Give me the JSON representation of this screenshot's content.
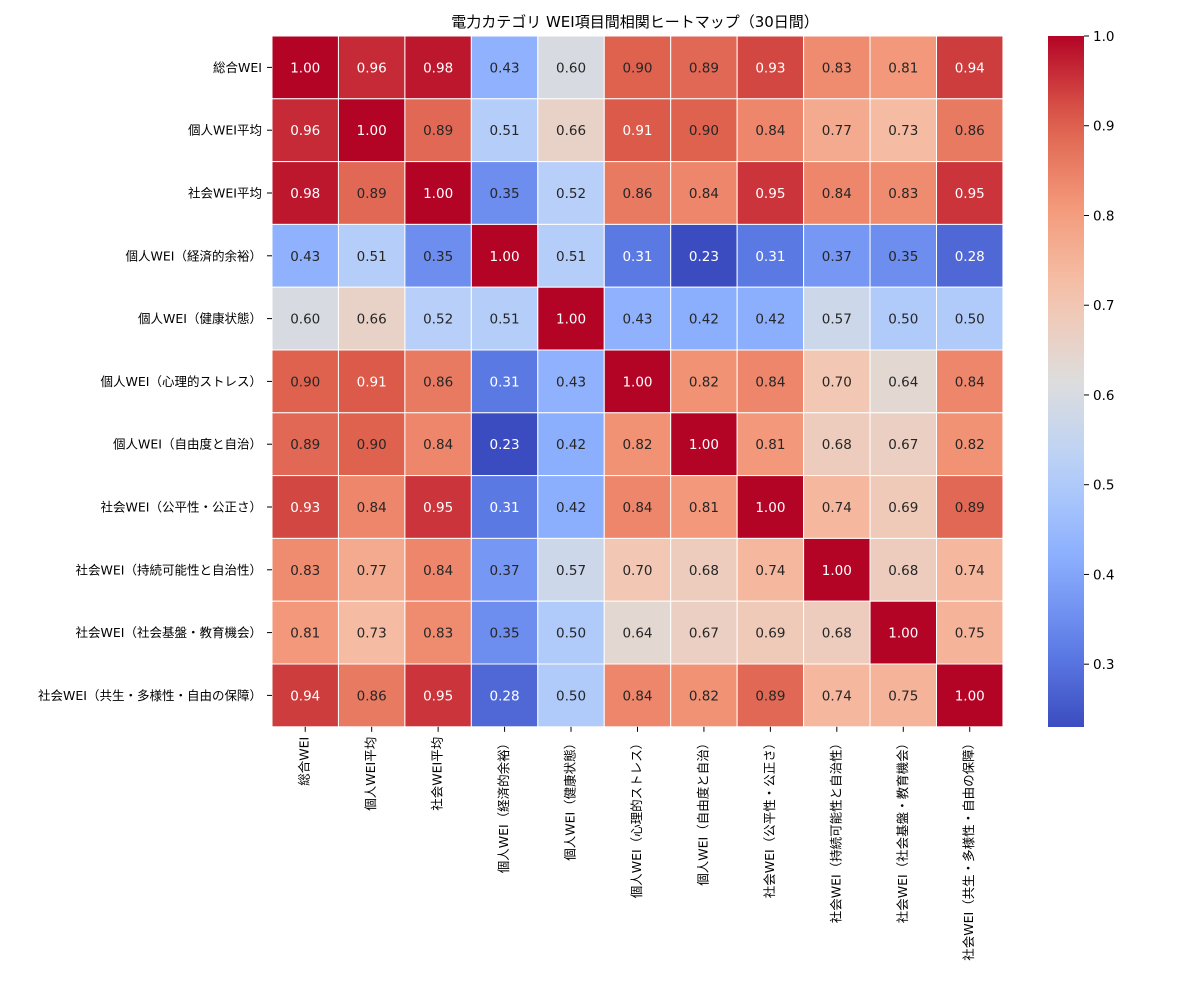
{
  "chart_data": {
    "type": "heatmap",
    "title": "電力カテゴリ WEI項目間相関ヒートマップ（30日間）",
    "xlabel": "",
    "ylabel": "",
    "labels": [
      "総合WEI",
      "個人WEI平均",
      "社会WEI平均",
      "個人WEI（経済的余裕）",
      "個人WEI（健康状態）",
      "個人WEI（心理的ストレス）",
      "個人WEI（自由度と自治）",
      "社会WEI（公平性・公正さ）",
      "社会WEI（持続可能性と自治性）",
      "社会WEI（社会基盤・教育機会）",
      "社会WEI（共生・多様性・自由の保障）"
    ],
    "matrix": [
      [
        1.0,
        0.96,
        0.98,
        0.43,
        0.6,
        0.9,
        0.89,
        0.93,
        0.83,
        0.81,
        0.94
      ],
      [
        0.96,
        1.0,
        0.89,
        0.51,
        0.66,
        0.91,
        0.9,
        0.84,
        0.77,
        0.73,
        0.86
      ],
      [
        0.98,
        0.89,
        1.0,
        0.35,
        0.52,
        0.86,
        0.84,
        0.95,
        0.84,
        0.83,
        0.95
      ],
      [
        0.43,
        0.51,
        0.35,
        1.0,
        0.51,
        0.31,
        0.23,
        0.31,
        0.37,
        0.35,
        0.28
      ],
      [
        0.6,
        0.66,
        0.52,
        0.51,
        1.0,
        0.43,
        0.42,
        0.42,
        0.57,
        0.5,
        0.5
      ],
      [
        0.9,
        0.91,
        0.86,
        0.31,
        0.43,
        1.0,
        0.82,
        0.84,
        0.7,
        0.64,
        0.84
      ],
      [
        0.89,
        0.9,
        0.84,
        0.23,
        0.42,
        0.82,
        1.0,
        0.81,
        0.68,
        0.67,
        0.82
      ],
      [
        0.93,
        0.84,
        0.95,
        0.31,
        0.42,
        0.84,
        0.81,
        1.0,
        0.74,
        0.69,
        0.89
      ],
      [
        0.83,
        0.77,
        0.84,
        0.37,
        0.57,
        0.7,
        0.68,
        0.74,
        1.0,
        0.68,
        0.74
      ],
      [
        0.81,
        0.73,
        0.83,
        0.35,
        0.5,
        0.64,
        0.67,
        0.69,
        0.68,
        1.0,
        0.75
      ],
      [
        0.94,
        0.86,
        0.95,
        0.28,
        0.5,
        0.84,
        0.82,
        0.89,
        0.74,
        0.75,
        1.0
      ]
    ],
    "value_range": [
      0.23,
      1.0
    ],
    "colormap": "coolwarm",
    "colorbar_ticks": [
      "0.3",
      "0.4",
      "0.5",
      "0.6",
      "0.7",
      "0.8",
      "0.9",
      "1.0"
    ],
    "grid_line_color": "#ffffff"
  }
}
